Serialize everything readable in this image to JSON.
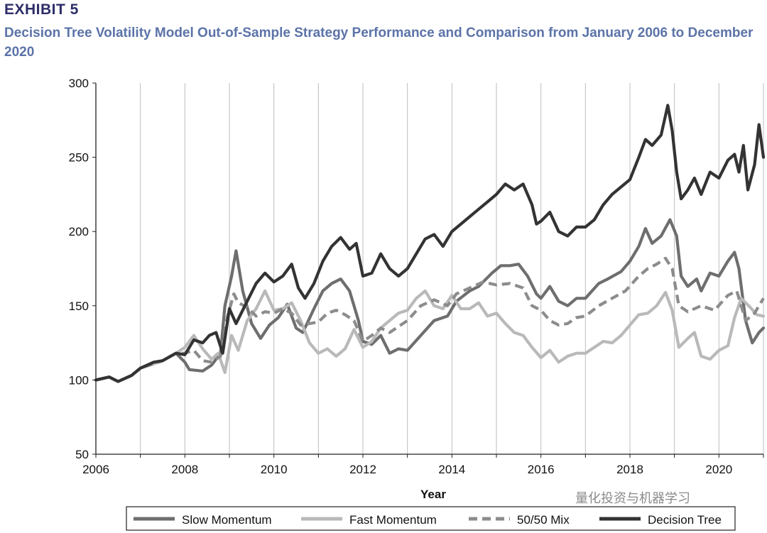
{
  "header": {
    "exhibit": "EXHIBIT 5",
    "title": "Decision Tree Volatility Model Out-of-Sample Strategy Performance and Comparison from January 2006 to December 2020"
  },
  "watermark": "量化投资与机器学习",
  "chart_data": {
    "type": "line",
    "title": "Decision Tree Volatility Model Out-of-Sample Strategy Performance and Comparison from January 2006 to December 2020",
    "xlabel": "Year",
    "ylabel": "",
    "xlim": [
      2006,
      2021
    ],
    "ylim": [
      50,
      300
    ],
    "xticks": [
      2006,
      2008,
      2010,
      2012,
      2014,
      2016,
      2018,
      2020
    ],
    "yticks": [
      50,
      100,
      150,
      200,
      250,
      300
    ],
    "grid": "vertical",
    "legend_position": "bottom",
    "series": [
      {
        "name": "Slow Momentum",
        "color": "#6e6e6e",
        "dash": "solid",
        "points": [
          [
            2006,
            100
          ],
          [
            2006.3,
            102
          ],
          [
            2006.5,
            99
          ],
          [
            2006.8,
            103
          ],
          [
            2007,
            108
          ],
          [
            2007.5,
            113
          ],
          [
            2007.8,
            118
          ],
          [
            2008,
            112
          ],
          [
            2008.1,
            107
          ],
          [
            2008.4,
            106
          ],
          [
            2008.6,
            110
          ],
          [
            2008.8,
            118
          ],
          [
            2008.9,
            150
          ],
          [
            2009.05,
            170
          ],
          [
            2009.15,
            187
          ],
          [
            2009.3,
            160
          ],
          [
            2009.5,
            138
          ],
          [
            2009.7,
            128
          ],
          [
            2009.9,
            137
          ],
          [
            2010.1,
            142
          ],
          [
            2010.3,
            151
          ],
          [
            2010.5,
            135
          ],
          [
            2010.65,
            132
          ],
          [
            2010.9,
            148
          ],
          [
            2011.1,
            160
          ],
          [
            2011.3,
            165
          ],
          [
            2011.5,
            168
          ],
          [
            2011.7,
            160
          ],
          [
            2011.9,
            140
          ],
          [
            2012.0,
            126
          ],
          [
            2012.2,
            124
          ],
          [
            2012.4,
            130
          ],
          [
            2012.6,
            118
          ],
          [
            2012.8,
            121
          ],
          [
            2013.0,
            120
          ],
          [
            2013.3,
            130
          ],
          [
            2013.6,
            140
          ],
          [
            2013.9,
            143
          ],
          [
            2014.1,
            153
          ],
          [
            2014.4,
            160
          ],
          [
            2014.6,
            163
          ],
          [
            2014.9,
            172
          ],
          [
            2015.1,
            177
          ],
          [
            2015.3,
            177
          ],
          [
            2015.5,
            178
          ],
          [
            2015.7,
            170
          ],
          [
            2015.9,
            158
          ],
          [
            2016.0,
            155
          ],
          [
            2016.2,
            163
          ],
          [
            2016.4,
            153
          ],
          [
            2016.6,
            150
          ],
          [
            2016.8,
            155
          ],
          [
            2017.0,
            155
          ],
          [
            2017.3,
            165
          ],
          [
            2017.5,
            168
          ],
          [
            2017.8,
            173
          ],
          [
            2018.0,
            180
          ],
          [
            2018.2,
            190
          ],
          [
            2018.35,
            202
          ],
          [
            2018.5,
            192
          ],
          [
            2018.7,
            197
          ],
          [
            2018.9,
            208
          ],
          [
            2019.05,
            197
          ],
          [
            2019.15,
            170
          ],
          [
            2019.3,
            163
          ],
          [
            2019.5,
            168
          ],
          [
            2019.6,
            160
          ],
          [
            2019.8,
            172
          ],
          [
            2020.0,
            170
          ],
          [
            2020.2,
            180
          ],
          [
            2020.35,
            186
          ],
          [
            2020.45,
            175
          ],
          [
            2020.6,
            140
          ],
          [
            2020.75,
            125
          ],
          [
            2020.9,
            132
          ],
          [
            2021.0,
            135
          ]
        ]
      },
      {
        "name": "Fast Momentum",
        "color": "#b9b9b9",
        "dash": "solid",
        "points": [
          [
            2006,
            100
          ],
          [
            2006.3,
            102
          ],
          [
            2006.5,
            99
          ],
          [
            2006.8,
            103
          ],
          [
            2007,
            108
          ],
          [
            2007.5,
            113
          ],
          [
            2007.8,
            118
          ],
          [
            2008,
            122
          ],
          [
            2008.2,
            130
          ],
          [
            2008.4,
            121
          ],
          [
            2008.6,
            114
          ],
          [
            2008.75,
            118
          ],
          [
            2008.9,
            105
          ],
          [
            2009.05,
            130
          ],
          [
            2009.2,
            120
          ],
          [
            2009.4,
            140
          ],
          [
            2009.6,
            148
          ],
          [
            2009.8,
            160
          ],
          [
            2010.0,
            147
          ],
          [
            2010.2,
            148
          ],
          [
            2010.4,
            152
          ],
          [
            2010.6,
            140
          ],
          [
            2010.8,
            125
          ],
          [
            2011.0,
            118
          ],
          [
            2011.2,
            121
          ],
          [
            2011.4,
            116
          ],
          [
            2011.6,
            121
          ],
          [
            2011.8,
            134
          ],
          [
            2012.0,
            122
          ],
          [
            2012.2,
            126
          ],
          [
            2012.4,
            135
          ],
          [
            2012.6,
            140
          ],
          [
            2012.8,
            145
          ],
          [
            2013.0,
            147
          ],
          [
            2013.2,
            155
          ],
          [
            2013.4,
            160
          ],
          [
            2013.6,
            150
          ],
          [
            2013.8,
            148
          ],
          [
            2014.0,
            157
          ],
          [
            2014.2,
            148
          ],
          [
            2014.4,
            148
          ],
          [
            2014.6,
            152
          ],
          [
            2014.8,
            143
          ],
          [
            2015.0,
            145
          ],
          [
            2015.2,
            138
          ],
          [
            2015.4,
            132
          ],
          [
            2015.6,
            130
          ],
          [
            2015.8,
            122
          ],
          [
            2016.0,
            115
          ],
          [
            2016.2,
            120
          ],
          [
            2016.4,
            112
          ],
          [
            2016.6,
            116
          ],
          [
            2016.8,
            118
          ],
          [
            2017.0,
            118
          ],
          [
            2017.2,
            122
          ],
          [
            2017.4,
            126
          ],
          [
            2017.6,
            125
          ],
          [
            2017.8,
            130
          ],
          [
            2018.0,
            137
          ],
          [
            2018.2,
            144
          ],
          [
            2018.4,
            145
          ],
          [
            2018.6,
            150
          ],
          [
            2018.8,
            159
          ],
          [
            2018.95,
            147
          ],
          [
            2019.1,
            122
          ],
          [
            2019.3,
            128
          ],
          [
            2019.45,
            132
          ],
          [
            2019.6,
            116
          ],
          [
            2019.8,
            114
          ],
          [
            2020.0,
            120
          ],
          [
            2020.2,
            123
          ],
          [
            2020.35,
            142
          ],
          [
            2020.5,
            155
          ],
          [
            2020.7,
            149
          ],
          [
            2020.85,
            144
          ],
          [
            2021.0,
            143
          ]
        ]
      },
      {
        "name": "50/50 Mix",
        "color": "#8c8c8c",
        "dash": "dashed",
        "points": [
          [
            2006,
            100
          ],
          [
            2006.3,
            102
          ],
          [
            2006.5,
            99
          ],
          [
            2006.8,
            103
          ],
          [
            2007,
            108
          ],
          [
            2007.5,
            113
          ],
          [
            2007.8,
            118
          ],
          [
            2008,
            118
          ],
          [
            2008.2,
            120
          ],
          [
            2008.4,
            113
          ],
          [
            2008.6,
            112
          ],
          [
            2008.8,
            116
          ],
          [
            2008.95,
            142
          ],
          [
            2009.1,
            158
          ],
          [
            2009.2,
            152
          ],
          [
            2009.4,
            149
          ],
          [
            2009.6,
            143
          ],
          [
            2009.8,
            146
          ],
          [
            2010.0,
            145
          ],
          [
            2010.2,
            148
          ],
          [
            2010.4,
            145
          ],
          [
            2010.6,
            137
          ],
          [
            2010.8,
            138
          ],
          [
            2011.0,
            139
          ],
          [
            2011.2,
            145
          ],
          [
            2011.4,
            147
          ],
          [
            2011.6,
            144
          ],
          [
            2011.8,
            140
          ],
          [
            2012.0,
            126
          ],
          [
            2012.2,
            130
          ],
          [
            2012.4,
            135
          ],
          [
            2012.6,
            132
          ],
          [
            2012.8,
            136
          ],
          [
            2013.0,
            140
          ],
          [
            2013.3,
            150
          ],
          [
            2013.6,
            154
          ],
          [
            2013.9,
            150
          ],
          [
            2014.1,
            158
          ],
          [
            2014.4,
            162
          ],
          [
            2014.7,
            166
          ],
          [
            2015.0,
            164
          ],
          [
            2015.3,
            165
          ],
          [
            2015.6,
            162
          ],
          [
            2015.8,
            150
          ],
          [
            2016.0,
            147
          ],
          [
            2016.2,
            140
          ],
          [
            2016.4,
            137
          ],
          [
            2016.6,
            138
          ],
          [
            2016.8,
            142
          ],
          [
            2017.0,
            143
          ],
          [
            2017.3,
            150
          ],
          [
            2017.6,
            155
          ],
          [
            2017.9,
            160
          ],
          [
            2018.2,
            170
          ],
          [
            2018.4,
            175
          ],
          [
            2018.6,
            178
          ],
          [
            2018.8,
            182
          ],
          [
            2018.95,
            175
          ],
          [
            2019.1,
            150
          ],
          [
            2019.3,
            146
          ],
          [
            2019.6,
            150
          ],
          [
            2019.9,
            147
          ],
          [
            2020.2,
            157
          ],
          [
            2020.4,
            160
          ],
          [
            2020.6,
            140
          ],
          [
            2020.8,
            145
          ],
          [
            2021.0,
            155
          ]
        ]
      },
      {
        "name": "Decision Tree",
        "color": "#333333",
        "dash": "solid",
        "points": [
          [
            2006,
            100
          ],
          [
            2006.3,
            102
          ],
          [
            2006.5,
            99
          ],
          [
            2006.8,
            103
          ],
          [
            2007,
            108
          ],
          [
            2007.3,
            112
          ],
          [
            2007.5,
            113
          ],
          [
            2007.8,
            118
          ],
          [
            2008.0,
            117
          ],
          [
            2008.2,
            127
          ],
          [
            2008.4,
            125
          ],
          [
            2008.55,
            130
          ],
          [
            2008.7,
            132
          ],
          [
            2008.85,
            118
          ],
          [
            2009.0,
            148
          ],
          [
            2009.15,
            138
          ],
          [
            2009.35,
            150
          ],
          [
            2009.6,
            165
          ],
          [
            2009.8,
            172
          ],
          [
            2010.0,
            166
          ],
          [
            2010.2,
            170
          ],
          [
            2010.4,
            178
          ],
          [
            2010.55,
            162
          ],
          [
            2010.7,
            155
          ],
          [
            2010.9,
            165
          ],
          [
            2011.1,
            180
          ],
          [
            2011.3,
            190
          ],
          [
            2011.5,
            196
          ],
          [
            2011.7,
            188
          ],
          [
            2011.85,
            192
          ],
          [
            2012.0,
            170
          ],
          [
            2012.2,
            172
          ],
          [
            2012.4,
            185
          ],
          [
            2012.6,
            175
          ],
          [
            2012.8,
            170
          ],
          [
            2013.0,
            175
          ],
          [
            2013.2,
            185
          ],
          [
            2013.4,
            195
          ],
          [
            2013.6,
            198
          ],
          [
            2013.8,
            190
          ],
          [
            2014.0,
            200
          ],
          [
            2014.2,
            205
          ],
          [
            2014.4,
            210
          ],
          [
            2014.6,
            215
          ],
          [
            2014.8,
            220
          ],
          [
            2015.0,
            225
          ],
          [
            2015.2,
            232
          ],
          [
            2015.4,
            228
          ],
          [
            2015.6,
            232
          ],
          [
            2015.8,
            218
          ],
          [
            2015.9,
            205
          ],
          [
            2016.0,
            207
          ],
          [
            2016.2,
            213
          ],
          [
            2016.4,
            200
          ],
          [
            2016.6,
            197
          ],
          [
            2016.8,
            203
          ],
          [
            2017.0,
            203
          ],
          [
            2017.2,
            208
          ],
          [
            2017.4,
            218
          ],
          [
            2017.6,
            225
          ],
          [
            2017.8,
            230
          ],
          [
            2018.0,
            235
          ],
          [
            2018.2,
            250
          ],
          [
            2018.35,
            262
          ],
          [
            2018.5,
            258
          ],
          [
            2018.7,
            265
          ],
          [
            2018.85,
            285
          ],
          [
            2018.95,
            268
          ],
          [
            2019.05,
            240
          ],
          [
            2019.15,
            222
          ],
          [
            2019.3,
            228
          ],
          [
            2019.45,
            236
          ],
          [
            2019.6,
            225
          ],
          [
            2019.8,
            240
          ],
          [
            2020.0,
            236
          ],
          [
            2020.2,
            248
          ],
          [
            2020.35,
            252
          ],
          [
            2020.45,
            240
          ],
          [
            2020.55,
            258
          ],
          [
            2020.65,
            228
          ],
          [
            2020.8,
            245
          ],
          [
            2020.9,
            272
          ],
          [
            2021.0,
            250
          ]
        ]
      }
    ]
  }
}
